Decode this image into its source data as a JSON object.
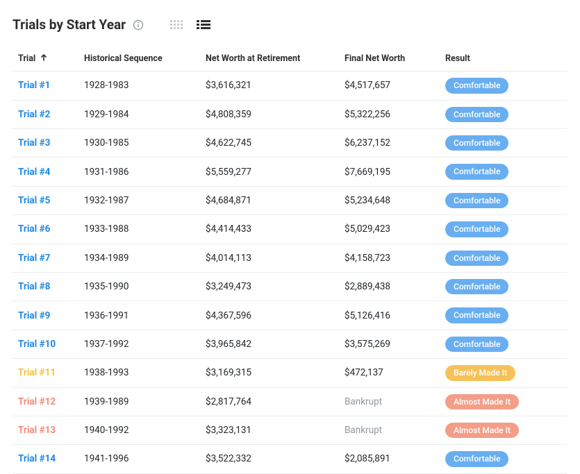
{
  "header": {
    "title": "Trials by Start Year"
  },
  "colors": {
    "link_blue": "#1e88e5",
    "link_yellow": "#f2c13c",
    "link_red": "#f28b78",
    "badge_comfortable": "#68aef0",
    "badge_barely": "#f5c25a",
    "badge_almost": "#f49d87",
    "muted": "#9096a0",
    "text": "#2b2d2f",
    "icon_inactive": "#c8ccd0",
    "icon_active": "#2b2d2f"
  },
  "columns": [
    {
      "key": "trial",
      "label": "Trial",
      "sorted": "asc"
    },
    {
      "key": "historical",
      "label": "Historical Sequence"
    },
    {
      "key": "nw_retirement",
      "label": "Net Worth at Retirement"
    },
    {
      "key": "final_nw",
      "label": "Final Net Worth"
    },
    {
      "key": "result",
      "label": "Result"
    }
  ],
  "rows": [
    {
      "trial": "Trial #1",
      "link_color": "link_blue",
      "historical": "1928-1983",
      "nw_retirement": "$3,616,321",
      "final_nw": "$4,517,657",
      "result_label": "Comfortable",
      "badge_color": "badge_comfortable"
    },
    {
      "trial": "Trial #2",
      "link_color": "link_blue",
      "historical": "1929-1984",
      "nw_retirement": "$4,808,359",
      "final_nw": "$5,322,256",
      "result_label": "Comfortable",
      "badge_color": "badge_comfortable"
    },
    {
      "trial": "Trial #3",
      "link_color": "link_blue",
      "historical": "1930-1985",
      "nw_retirement": "$4,622,745",
      "final_nw": "$6,237,152",
      "result_label": "Comfortable",
      "badge_color": "badge_comfortable"
    },
    {
      "trial": "Trial #4",
      "link_color": "link_blue",
      "historical": "1931-1986",
      "nw_retirement": "$5,559,277",
      "final_nw": "$7,669,195",
      "result_label": "Comfortable",
      "badge_color": "badge_comfortable"
    },
    {
      "trial": "Trial #5",
      "link_color": "link_blue",
      "historical": "1932-1987",
      "nw_retirement": "$4,684,871",
      "final_nw": "$5,234,648",
      "result_label": "Comfortable",
      "badge_color": "badge_comfortable"
    },
    {
      "trial": "Trial #6",
      "link_color": "link_blue",
      "historical": "1933-1988",
      "nw_retirement": "$4,414,433",
      "final_nw": "$5,029,423",
      "result_label": "Comfortable",
      "badge_color": "badge_comfortable"
    },
    {
      "trial": "Trial #7",
      "link_color": "link_blue",
      "historical": "1934-1989",
      "nw_retirement": "$4,014,113",
      "final_nw": "$4,158,723",
      "result_label": "Comfortable",
      "badge_color": "badge_comfortable"
    },
    {
      "trial": "Trial #8",
      "link_color": "link_blue",
      "historical": "1935-1990",
      "nw_retirement": "$3,249,473",
      "final_nw": "$2,889,438",
      "result_label": "Comfortable",
      "badge_color": "badge_comfortable"
    },
    {
      "trial": "Trial #9",
      "link_color": "link_blue",
      "historical": "1936-1991",
      "nw_retirement": "$4,367,596",
      "final_nw": "$5,126,416",
      "result_label": "Comfortable",
      "badge_color": "badge_comfortable"
    },
    {
      "trial": "Trial #10",
      "link_color": "link_blue",
      "historical": "1937-1992",
      "nw_retirement": "$3,965,842",
      "final_nw": "$3,575,269",
      "result_label": "Comfortable",
      "badge_color": "badge_comfortable"
    },
    {
      "trial": "Trial #11",
      "link_color": "link_yellow",
      "historical": "1938-1993",
      "nw_retirement": "$3,169,315",
      "final_nw": "$472,137",
      "result_label": "Barely Made It",
      "badge_color": "badge_barely"
    },
    {
      "trial": "Trial #12",
      "link_color": "link_red",
      "historical": "1939-1989",
      "nw_retirement": "$2,817,764",
      "final_nw": "Bankrupt",
      "final_muted": true,
      "result_label": "Almost Made It",
      "badge_color": "badge_almost"
    },
    {
      "trial": "Trial #13",
      "link_color": "link_red",
      "historical": "1940-1992",
      "nw_retirement": "$3,323,131",
      "final_nw": "Bankrupt",
      "final_muted": true,
      "result_label": "Almost Made It",
      "badge_color": "badge_almost"
    },
    {
      "trial": "Trial #14",
      "link_color": "link_blue",
      "historical": "1941-1996",
      "nw_retirement": "$3,522,332",
      "final_nw": "$2,085,891",
      "result_label": "Comfortable",
      "badge_color": "badge_comfortable"
    }
  ]
}
